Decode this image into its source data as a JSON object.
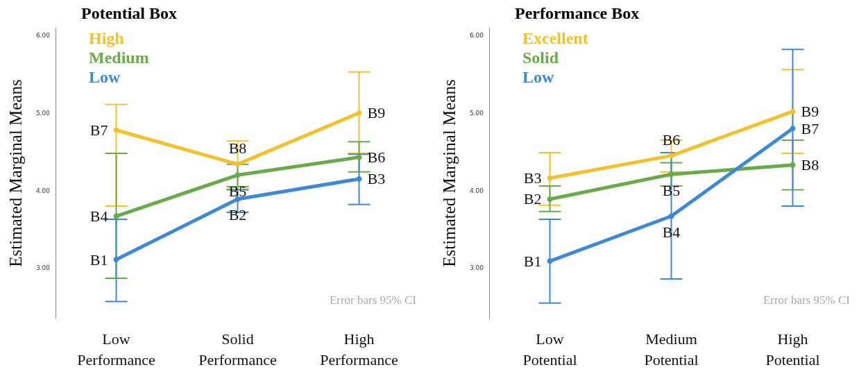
{
  "chart_data": [
    {
      "type": "line",
      "legend_title": "Potential Box",
      "ylabel": "Estimated Marginal Means",
      "categories": [
        "Low Performance",
        "Solid Performance",
        "High Performance"
      ],
      "series": [
        {
          "name": "High",
          "color": "#f2c12e",
          "values": [
            4.78,
            4.34,
            5.0
          ],
          "errors": [
            [
              3.8,
              5.11
            ],
            [
              4.02,
              4.64
            ],
            [
              4.48,
              5.53
            ]
          ]
        },
        {
          "name": "Medium",
          "color": "#6aaa4b",
          "values": [
            3.67,
            4.2,
            4.43
          ],
          "errors": [
            [
              2.87,
              4.48
            ],
            [
              4.05,
              4.34
            ],
            [
              4.24,
              4.63
            ]
          ]
        },
        {
          "name": "Low",
          "color": "#3f89d0",
          "values": [
            3.11,
            3.89,
            4.15
          ],
          "errors": [
            [
              2.57,
              3.63
            ],
            [
              3.72,
              4.01
            ],
            [
              3.82,
              4.47
            ]
          ]
        }
      ],
      "ylim": [
        2.35,
        6.1
      ],
      "yticks": [
        {
          "value": 3,
          "label": "3.00"
        },
        {
          "value": 4,
          "label": "4.00"
        },
        {
          "value": 5,
          "label": "5.00"
        },
        {
          "value": 6,
          "label": "6.00"
        }
      ],
      "grid": false,
      "legend": "top left",
      "marker": "circle",
      "line_style": "solid",
      "annotations": [
        {
          "text": "B7",
          "x": "Low Performance",
          "y": 4.78
        },
        {
          "text": "B4",
          "x": "Low Performance",
          "y": 3.67
        },
        {
          "text": "B1",
          "x": "Low Performance",
          "y": 3.11
        },
        {
          "text": "B8",
          "x": "Solid Performance",
          "y": 4.34
        },
        {
          "text": "B5",
          "x": "Solid Performance",
          "y": 4.2
        },
        {
          "text": "B2",
          "x": "Solid Performance",
          "y": 3.89
        },
        {
          "text": "B9",
          "x": "High Performance",
          "y": 5.0
        },
        {
          "text": "B6",
          "x": "High Performance",
          "y": 4.43
        },
        {
          "text": "B3",
          "x": "High Performance",
          "y": 4.15
        },
        "Error bars 95% CI"
      ]
    },
    {
      "type": "line",
      "legend_title": "Performance Box",
      "ylabel": "Estimated Marginal Means",
      "categories": [
        "Low Potential",
        "Medium Potential",
        "High Potential"
      ],
      "series": [
        {
          "name": "Excellent",
          "color": "#f2c12e",
          "values": [
            4.16,
            4.45,
            5.02
          ],
          "errors": [
            [
              3.81,
              4.49
            ],
            [
              4.24,
              4.65
            ],
            [
              4.48,
              5.56
            ]
          ]
        },
        {
          "name": "Solid",
          "color": "#6aaa4b",
          "values": [
            3.89,
            4.21,
            4.33
          ],
          "errors": [
            [
              3.73,
              4.06
            ],
            [
              4.06,
              4.36
            ],
            [
              4.01,
              4.65
            ]
          ]
        },
        {
          "name": "Low",
          "color": "#3f89d0",
          "values": [
            3.09,
            3.67,
            4.8
          ],
          "errors": [
            [
              2.55,
              3.63
            ],
            [
              2.86,
              4.49
            ],
            [
              3.8,
              5.82
            ]
          ]
        }
      ],
      "ylim": [
        2.35,
        6.1
      ],
      "yticks": [
        {
          "value": 3,
          "label": "3.00"
        },
        {
          "value": 4,
          "label": "4.00"
        },
        {
          "value": 5,
          "label": "5.00"
        },
        {
          "value": 6,
          "label": "6.00"
        }
      ],
      "grid": false,
      "legend": "top left",
      "marker": "circle",
      "line_style": "solid",
      "annotations": [
        {
          "text": "B3",
          "x": "Low Potential",
          "y": 4.16
        },
        {
          "text": "B2",
          "x": "Low Potential",
          "y": 3.89
        },
        {
          "text": "B1",
          "x": "Low Potential",
          "y": 3.09
        },
        {
          "text": "B6",
          "x": "Medium Potential",
          "y": 4.45
        },
        {
          "text": "B5",
          "x": "Medium Potential",
          "y": 4.21
        },
        {
          "text": "B4",
          "x": "Medium Potential",
          "y": 3.67
        },
        {
          "text": "B9",
          "x": "High Potential",
          "y": 5.02
        },
        {
          "text": "B7",
          "x": "High Potential",
          "y": 4.8
        },
        {
          "text": "B8",
          "x": "High Potential",
          "y": 4.33
        },
        "Error bars 95% CI"
      ]
    }
  ]
}
